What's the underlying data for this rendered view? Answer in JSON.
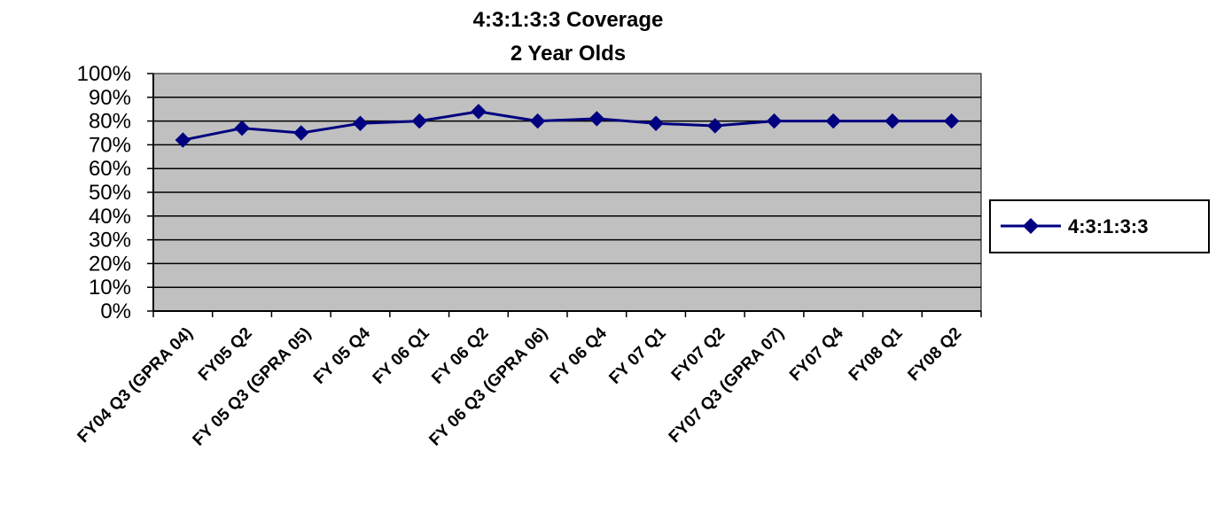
{
  "chart_data": {
    "type": "line",
    "title": "4:3:1:3:3 Coverage",
    "subtitle": "2 Year Olds",
    "categories": [
      "FY04 Q3 (GPRA 04)",
      "FY05 Q2",
      "FY 05 Q3 (GPRA 05)",
      "FY 05 Q4",
      "FY 06 Q1",
      "FY 06 Q2",
      "FY 06 Q3 (GPRA 06)",
      "FY 06 Q4",
      "FY 07 Q1",
      "FY07 Q2",
      "FY07 Q3 (GPRA 07)",
      "FY07 Q4",
      "FY08 Q1",
      "FY08 Q2"
    ],
    "series": [
      {
        "name": "4:3:1:3:3",
        "values": [
          0.72,
          0.77,
          0.75,
          0.79,
          0.8,
          0.84,
          0.8,
          0.81,
          0.79,
          0.78,
          0.8,
          0.8,
          0.8,
          0.8
        ],
        "color": "#000080",
        "marker": "diamond"
      }
    ],
    "ylim": [
      0,
      1
    ],
    "yticks": [
      "0%",
      "10%",
      "20%",
      "30%",
      "40%",
      "50%",
      "60%",
      "70%",
      "80%",
      "90%",
      "100%"
    ],
    "grid": true,
    "plot_background": "#c0c0c0",
    "legend_position": "right"
  }
}
